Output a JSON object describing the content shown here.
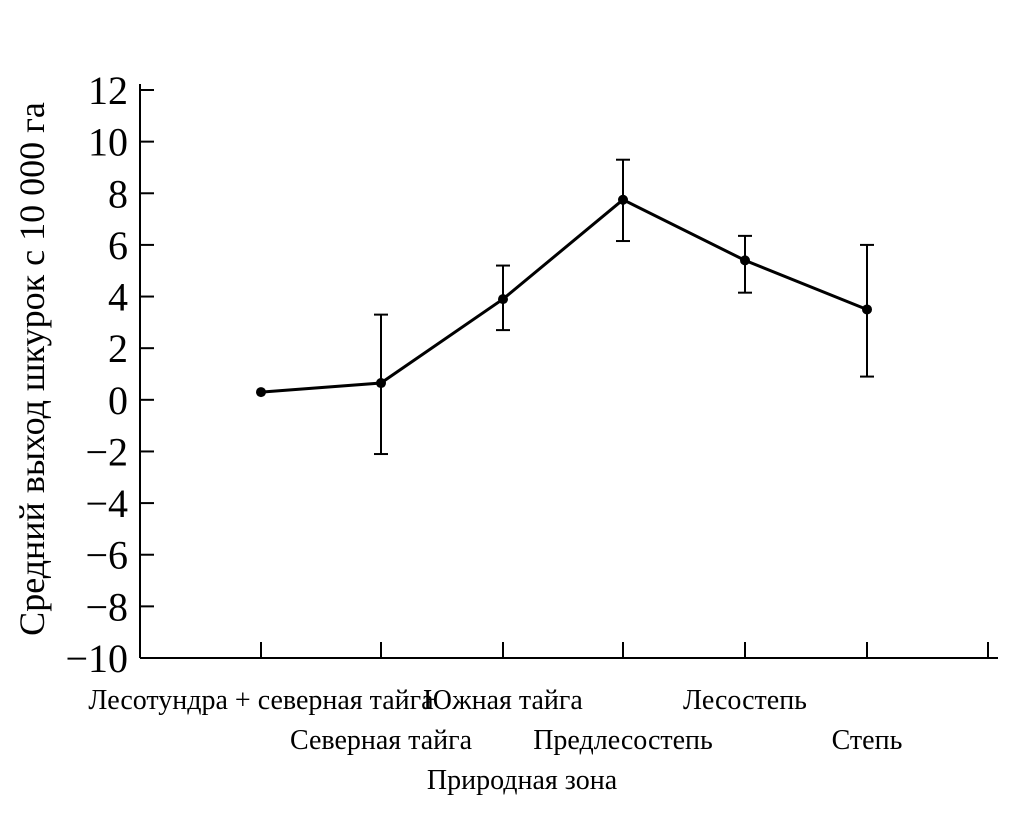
{
  "chart_data": {
    "type": "line",
    "title": "",
    "xlabel": "Природная зона",
    "ylabel": "Средний выход шкурок с 10 000 га",
    "ylim": [
      -10,
      12
    ],
    "yticks": [
      12,
      10,
      8,
      6,
      4,
      2,
      0,
      -2,
      -4,
      -6,
      -8,
      -10
    ],
    "ytick_labels": [
      "12",
      "10",
      "8",
      "6",
      "4",
      "2",
      "0",
      "−2",
      "−4",
      "−6",
      "−8",
      "−10"
    ],
    "categories": [
      "Лесотундра + северная тайга",
      "Северная тайга",
      "Южная тайга",
      "Предлесостепь",
      "Лесостепь",
      "Степь"
    ],
    "series": [
      {
        "values": [
          0.3,
          0.65,
          3.9,
          7.75,
          5.4,
          3.5
        ],
        "error_low": [
          null,
          -2.1,
          2.7,
          6.15,
          4.15,
          0.9
        ],
        "error_high": [
          null,
          3.3,
          5.2,
          9.3,
          6.35,
          6.0
        ]
      }
    ],
    "grid": false,
    "legend": "none",
    "colors": {
      "line": "#000000"
    }
  }
}
